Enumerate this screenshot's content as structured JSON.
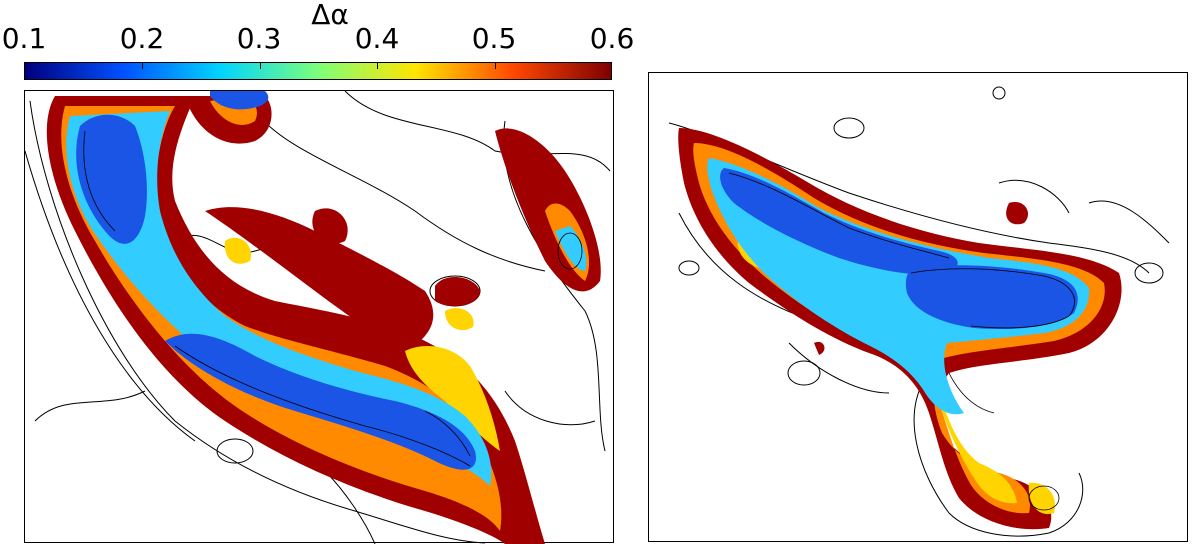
{
  "colorbar": {
    "label": "Δα",
    "ticks": [
      "0.1",
      "0.2",
      "0.3",
      "0.4",
      "0.5",
      "0.6"
    ],
    "colormap": [
      "#00007f",
      "#0050ff",
      "#00d4ff",
      "#7dff7a",
      "#ffe500",
      "#ff4800",
      "#7f0000"
    ]
  },
  "colors": {
    "low": "#1a55e6",
    "mid": "#33ccff",
    "high": "#ffd400",
    "edge": "#a00000"
  }
}
